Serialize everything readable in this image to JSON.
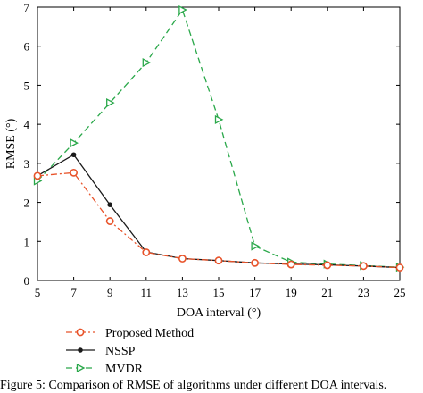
{
  "chart_data": {
    "type": "line",
    "xlabel": "DOA interval (°)",
    "ylabel": "RMSE (°)",
    "xlim": [
      5,
      25
    ],
    "ylim": [
      0,
      7
    ],
    "xticks": [
      5,
      7,
      9,
      11,
      13,
      15,
      17,
      19,
      21,
      23,
      25
    ],
    "yticks": [
      0,
      1,
      2,
      3,
      4,
      5,
      6,
      7
    ],
    "x": [
      5,
      7,
      9,
      11,
      13,
      15,
      17,
      19,
      21,
      23,
      25
    ],
    "grid": false,
    "legend_position": "bottom",
    "series": [
      {
        "name": "Proposed Method",
        "color": "#e8532a",
        "marker": "circle-open",
        "linestyle": "dash-dot",
        "values": [
          2.68,
          2.76,
          1.52,
          0.72,
          0.56,
          0.51,
          0.45,
          0.41,
          0.39,
          0.37,
          0.33
        ]
      },
      {
        "name": "NSSP",
        "color": "#1a1a1a",
        "marker": "dot",
        "linestyle": "solid",
        "values": [
          2.68,
          3.22,
          1.94,
          0.73,
          0.56,
          0.51,
          0.45,
          0.42,
          0.4,
          0.37,
          0.33
        ]
      },
      {
        "name": "MVDR",
        "color": "#2aa84a",
        "marker": "triangle-right",
        "linestyle": "dashed",
        "values": [
          2.55,
          3.52,
          4.55,
          5.58,
          6.93,
          4.12,
          0.88,
          0.47,
          0.42,
          0.38,
          0.34
        ]
      }
    ]
  },
  "caption": "Figure 5: Comparison of RMSE of algorithms under different DOA intervals."
}
